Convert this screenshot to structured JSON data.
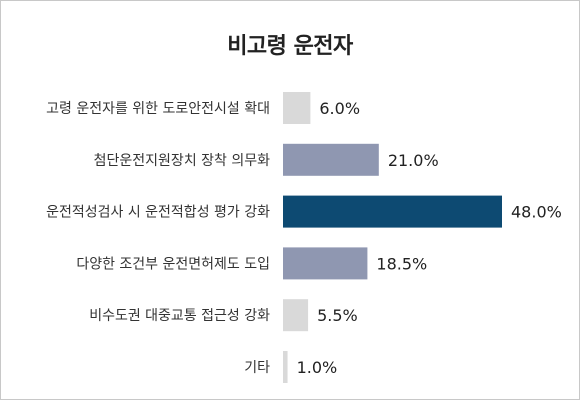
{
  "chart_data": {
    "type": "bar",
    "orientation": "horizontal",
    "title": "비고령 운전자",
    "categories": [
      "고령 운전자를 위한 도로안전시설 확대",
      "첨단운전지원장치 장착 의무화",
      "운전적성검사 시 운전적합성 평가 강화",
      "다양한 조건부 운전면허제도 도입",
      "비수도권 대중교통 접근성 강화",
      "기타"
    ],
    "values": [
      6.0,
      21.0,
      48.0,
      18.5,
      5.5,
      1.0
    ],
    "value_labels": [
      "6.0%",
      "21.0%",
      "48.0%",
      "18.5%",
      "5.5%",
      "1.0%"
    ],
    "bar_colors": [
      "#d9d9d9",
      "#8f97b1",
      "#0d4a72",
      "#8f97b1",
      "#d9d9d9",
      "#d9d9d9"
    ],
    "xlim": [
      0,
      48
    ],
    "grid": false,
    "legend": "none"
  }
}
